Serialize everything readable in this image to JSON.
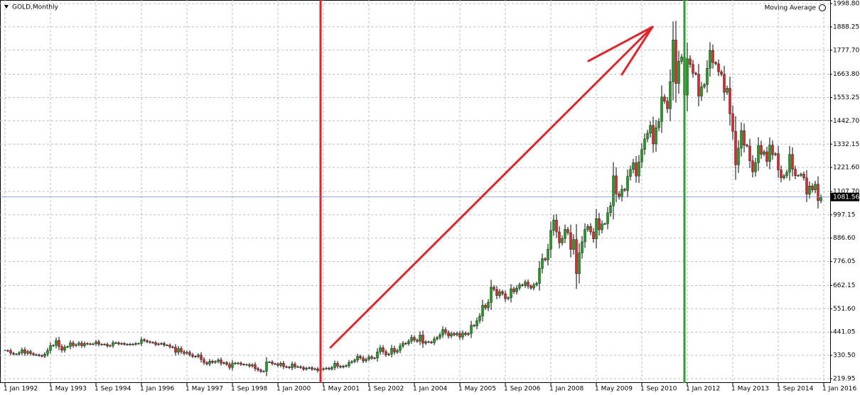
{
  "chart_data": {
    "type": "candlestick",
    "title": "GOLD,Monthly",
    "indicator": "Moving Average",
    "up_color": "#1f9e1f",
    "down_color": "#e0262b",
    "grid": true,
    "categories": [
      "1 Jan 1992",
      null,
      null,
      null,
      null,
      null,
      null,
      null,
      null,
      null,
      null,
      null,
      null,
      null,
      null,
      null,
      "1 May 1993",
      null,
      null,
      null,
      null,
      null,
      null,
      null,
      null,
      null,
      null,
      null,
      null,
      null,
      null,
      null,
      "1 Sep 1994",
      null,
      null,
      null,
      null,
      null,
      null,
      null,
      null,
      null,
      null,
      null,
      null,
      null,
      null,
      null,
      "1 Jan 1996",
      null,
      null,
      null,
      null,
      null,
      null,
      null,
      null,
      null,
      null,
      null,
      null,
      null,
      null,
      null,
      "1 May 1997",
      null,
      null,
      null,
      null,
      null,
      null,
      null,
      null,
      null,
      null,
      null,
      null,
      null,
      null,
      null,
      "1 Sep 1998",
      null,
      null,
      null,
      null,
      null,
      null,
      null,
      null,
      null,
      null,
      null,
      null,
      null,
      null,
      null,
      "1 Jan 2000",
      null,
      null,
      null,
      null,
      null,
      null,
      null,
      null,
      null,
      null,
      null,
      null,
      null,
      null,
      null,
      "1 May 2001",
      null,
      null,
      null,
      null,
      null,
      null,
      null,
      null,
      null,
      null,
      null,
      null,
      null,
      null,
      null,
      "1 Sep 2002",
      null,
      null,
      null,
      null,
      null,
      null,
      null,
      null,
      null,
      null,
      null,
      null,
      null,
      null,
      null,
      "1 Jan 2004",
      null,
      null,
      null,
      null,
      null,
      null,
      null,
      null,
      null,
      null,
      null,
      null,
      null,
      null,
      null,
      "1 May 2005",
      null,
      null,
      null,
      null,
      null,
      null,
      null,
      null,
      null,
      null,
      null,
      null,
      null,
      null,
      null,
      "1 Sep 2006",
      null,
      null,
      null,
      null,
      null,
      null,
      null,
      null,
      null,
      null,
      null,
      null,
      null,
      null,
      null,
      "1 Jan 2008",
      null,
      null,
      null,
      null,
      null,
      null,
      null,
      null,
      null,
      null,
      null,
      null,
      null,
      null,
      null,
      "1 May 2009",
      null,
      null,
      null,
      null,
      null,
      null,
      null,
      null,
      null,
      null,
      null,
      null,
      null,
      null,
      null,
      "1 Sep 2010",
      null,
      null,
      null,
      null,
      null,
      null,
      null,
      null,
      null,
      null,
      null,
      null,
      null,
      null,
      null,
      "1 Jan 2012",
      null,
      null,
      null,
      null,
      null,
      null,
      null,
      null,
      null,
      null,
      null,
      null,
      null,
      null,
      null,
      "1 May 2013",
      null,
      null,
      null,
      null,
      null,
      null,
      null,
      null,
      null,
      null,
      null,
      null,
      null,
      null,
      null,
      "1 Sep 2014",
      null,
      null,
      null,
      null,
      null,
      null,
      null,
      null,
      null,
      null,
      null,
      null,
      null,
      null,
      null,
      "1 Jan 2016"
    ],
    "values": [
      354,
      353,
      341,
      337,
      337,
      343,
      357,
      340,
      349,
      339,
      334,
      333,
      330,
      327,
      337,
      354,
      377,
      378,
      401,
      372,
      355,
      370,
      372,
      390,
      377,
      381,
      389,
      376,
      387,
      385,
      384,
      385,
      395,
      383,
      383,
      383,
      375,
      377,
      391,
      390,
      385,
      387,
      383,
      382,
      384,
      383,
      387,
      387,
      405,
      400,
      395,
      392,
      391,
      382,
      385,
      387,
      379,
      379,
      371,
      369,
      345,
      363,
      348,
      340,
      345,
      334,
      326,
      325,
      332,
      311,
      296,
      290,
      303,
      297,
      301,
      309,
      293,
      296,
      288,
      273,
      294,
      292,
      294,
      288,
      287,
      287,
      280,
      286,
      268,
      261,
      255,
      255,
      299,
      299,
      291,
      290,
      283,
      293,
      277,
      275,
      272,
      289,
      276,
      277,
      273,
      265,
      270,
      272,
      265,
      267,
      258,
      264,
      267,
      270,
      266,
      273,
      293,
      279,
      275,
      279,
      282,
      297,
      301,
      308,
      326,
      318,
      304,
      312,
      324,
      317,
      318,
      347,
      367,
      348,
      334,
      337,
      364,
      346,
      354,
      375,
      388,
      386,
      398,
      416,
      403,
      397,
      427,
      388,
      395,
      394,
      391,
      408,
      415,
      428,
      453,
      438,
      422,
      434,
      428,
      435,
      417,
      436,
      429,
      434,
      473,
      470,
      495,
      517,
      568,
      556,
      582,
      654,
      643,
      614,
      633,
      623,
      599,
      604,
      646,
      632,
      650,
      665,
      662,
      678,
      659,
      650,
      665,
      672,
      743,
      789,
      783,
      834,
      923,
      972,
      916,
      864,
      885,
      928,
      912,
      833,
      880,
      718,
      816,
      869,
      927,
      942,
      916,
      883,
      979,
      926,
      954,
      955,
      1007,
      1040,
      1182,
      1097,
      1081,
      1118,
      1113,
      1179,
      1212,
      1244,
      1181,
      1248,
      1307,
      1357,
      1384,
      1421,
      1333,
      1410,
      1439,
      1556,
      1536,
      1500,
      1628,
      1826,
      1620,
      1725,
      1746,
      1565,
      1737,
      1710,
      1669,
      1664,
      1560,
      1604,
      1614,
      1692,
      1776,
      1719,
      1713,
      1675,
      1663,
      1578,
      1597,
      1476,
      1393,
      1234,
      1313,
      1396,
      1327,
      1323,
      1253,
      1201,
      1244,
      1326,
      1284,
      1296,
      1250,
      1327,
      1282,
      1287,
      1210,
      1172,
      1182,
      1199,
      1283,
      1213,
      1183,
      1184,
      1190,
      1172,
      1095,
      1134,
      1115,
      1142,
      1064,
      1081.56,
      null
    ],
    "ylim": [
      219.95,
      1998.8
    ],
    "yticks": [
      219.95,
      {
        "value": 330.5,
        "label": "330.50"
      },
      441.05,
      {
        "value": 551.6,
        "label": "551.60"
      },
      662.15,
      776.05,
      {
        "value": 886.6,
        "label": "886.60"
      },
      997.15,
      {
        "value": 1107.7,
        "label": "1107.70"
      },
      {
        "value": 1221.6,
        "label": "1221.60"
      },
      1332.15,
      {
        "value": 1442.7,
        "label": "1442.70"
      },
      1553.25,
      {
        "value": 1663.8,
        "label": "1663.80"
      },
      {
        "value": 1777.7,
        "label": "1777.70"
      },
      1888.25,
      {
        "value": 1998.8,
        "label": "1998.80"
      }
    ],
    "vertical_lines": [
      {
        "at": 111,
        "color": "#e8202a"
      },
      {
        "at": 239,
        "color": "#2ca02c"
      }
    ]
  }
}
